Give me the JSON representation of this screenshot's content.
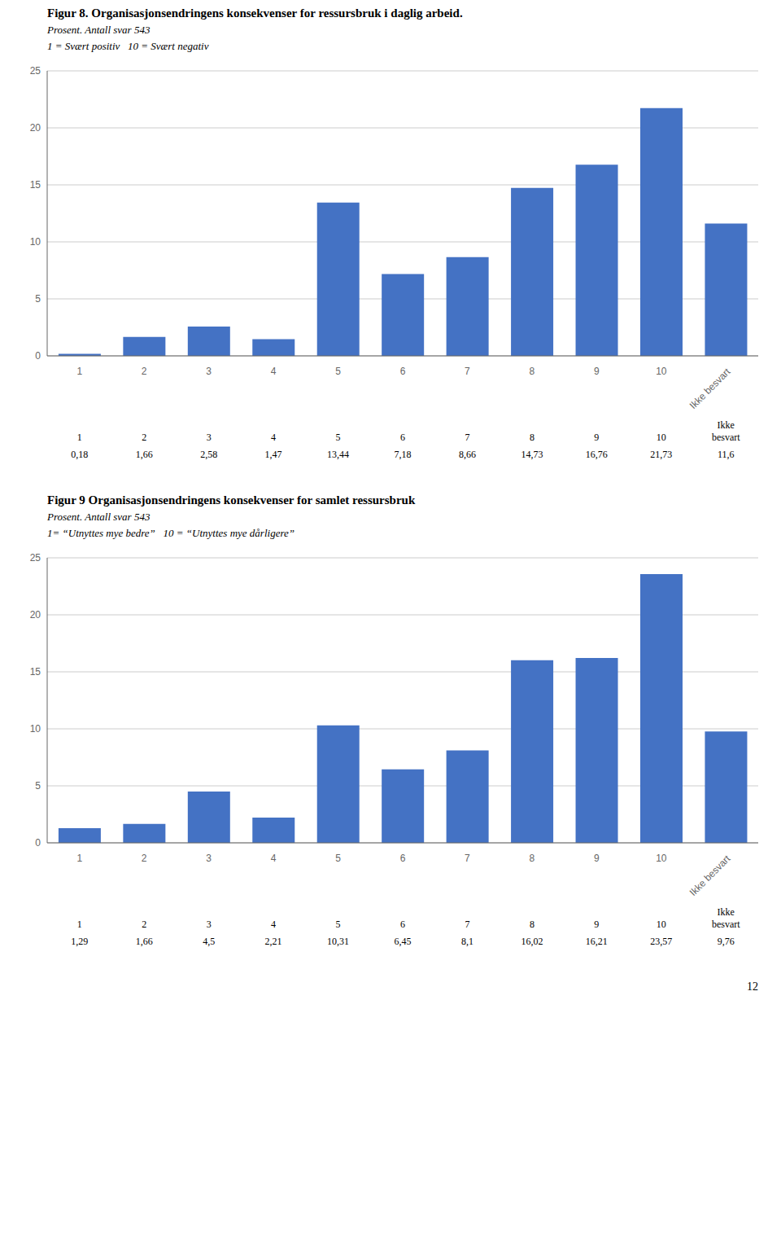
{
  "chart_data": [
    {
      "type": "bar",
      "title": "Figur 8. Organisasjonsendringens konsekvenser for ressursbruk i daglig arbeid.",
      "subtitle": [
        "Prosent. Antall svar 543",
        "1 = Svært positiv   10 = Svært negativ"
      ],
      "categories": [
        "1",
        "2",
        "3",
        "4",
        "5",
        "6",
        "7",
        "8",
        "9",
        "10",
        "Ikke besvart"
      ],
      "values": [
        0.18,
        1.66,
        2.58,
        1.47,
        13.44,
        7.18,
        8.66,
        14.73,
        16.76,
        21.73,
        11.6
      ],
      "value_labels": [
        "0,18",
        "1,66",
        "2,58",
        "1,47",
        "13,44",
        "7,18",
        "8,66",
        "14,73",
        "16,76",
        "21,73",
        "11,6"
      ],
      "color": "#4472C4",
      "ylim": [
        0,
        25
      ],
      "yticks": [
        0,
        5,
        10,
        15,
        20,
        25
      ],
      "grid": true
    },
    {
      "type": "bar",
      "title": "Figur 9 Organisasjonsendringens konsekvenser for samlet ressursbruk",
      "subtitle": [
        "Prosent. Antall svar 543",
        "1= “Utnyttes mye bedre”   10 = “Utnyttes mye dårligere”"
      ],
      "categories": [
        "1",
        "2",
        "3",
        "4",
        "5",
        "6",
        "7",
        "8",
        "9",
        "10",
        "Ikke besvart"
      ],
      "values": [
        1.29,
        1.66,
        4.5,
        2.21,
        10.31,
        6.45,
        8.1,
        16.02,
        16.21,
        23.57,
        9.76
      ],
      "value_labels": [
        "1,29",
        "1,66",
        "4,5",
        "2,21",
        "10,31",
        "6,45",
        "8,1",
        "16,02",
        "16,21",
        "23,57",
        "9,76"
      ],
      "color": "#4472C4",
      "ylim": [
        0,
        25
      ],
      "yticks": [
        0,
        5,
        10,
        15,
        20,
        25
      ],
      "grid": true,
      "annotations": [
        "12"
      ]
    }
  ]
}
